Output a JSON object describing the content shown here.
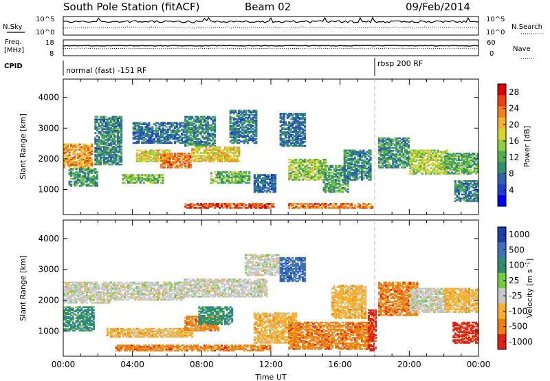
{
  "header": {
    "station": "South Pole Station (fitACF)",
    "beam": "Beam 02",
    "date": "09/Feb/2014"
  },
  "top_panels": {
    "nsky_label": "N.Sky",
    "nsky_ticks": [
      "10^5",
      "10^0"
    ],
    "nsearch_label": "N.Search",
    "nsearch_ticks": [
      "10^5",
      "10^0"
    ],
    "freq_label_1": "Freq.",
    "freq_label_2": "[MHz]",
    "freq_ticks": [
      "18",
      "8"
    ],
    "nave_label": "Nave",
    "nave_ticks": [
      "60",
      "0"
    ],
    "cpid_label": "CPID",
    "cpid_modes": [
      {
        "label": "normal (fast) -151 RF",
        "start_hour": 0,
        "end_hour": 18.0
      },
      {
        "label": "rbsp 200 RF",
        "start_hour": 18.0,
        "end_hour": 24.0
      }
    ]
  },
  "chart_data": [
    {
      "type": "heatmap",
      "name": "power",
      "ylabel": "Slant Range [km]",
      "xlabel": "",
      "x_ticks": [
        "00:00",
        "04:00",
        "08:00",
        "12:00",
        "16:00",
        "20:00",
        "00:00"
      ],
      "x_tick_hours": [
        0,
        4,
        8,
        12,
        16,
        20,
        24
      ],
      "ylim": [
        180,
        4600
      ],
      "y_ticks": [
        1000,
        2000,
        3000,
        4000
      ],
      "colorbar": {
        "label": "Power [dB]",
        "ticks": [
          "28",
          "24",
          "20",
          "16",
          "12",
          "8",
          "4"
        ],
        "tick_values": [
          28,
          24,
          20,
          16,
          12,
          8,
          4
        ],
        "range": [
          0,
          30
        ],
        "colors": [
          "#0000ff",
          "#1f3fd0",
          "#3060b0",
          "#2f8f6f",
          "#4faf4f",
          "#8fcf3f",
          "#d7d727",
          "#f7b02f",
          "#f77f1f",
          "#f04010",
          "#e00000"
        ]
      },
      "regions": [
        {
          "h0": 0.0,
          "h1": 1.7,
          "r0": 1700,
          "r1": 2500,
          "v": 22
        },
        {
          "h0": 0.3,
          "h1": 2.0,
          "r0": 1100,
          "r1": 1700,
          "v": 10
        },
        {
          "h0": 1.8,
          "h1": 3.4,
          "r0": 1800,
          "r1": 3400,
          "v": 9
        },
        {
          "h0": 3.4,
          "h1": 5.8,
          "r0": 1200,
          "r1": 1500,
          "v": 14
        },
        {
          "h0": 4.2,
          "h1": 6.2,
          "r0": 1900,
          "r1": 2300,
          "v": 18
        },
        {
          "h0": 4.0,
          "h1": 7.2,
          "r0": 2500,
          "r1": 3200,
          "v": 7
        },
        {
          "h0": 5.6,
          "h1": 7.4,
          "r0": 1700,
          "r1": 2200,
          "v": 24
        },
        {
          "h0": 7.0,
          "h1": 8.8,
          "r0": 2400,
          "r1": 3400,
          "v": 9
        },
        {
          "h0": 7.4,
          "h1": 10.2,
          "r0": 1900,
          "r1": 2400,
          "v": 19
        },
        {
          "h0": 8.5,
          "h1": 10.8,
          "r0": 1200,
          "r1": 1600,
          "v": 13
        },
        {
          "h0": 9.6,
          "h1": 11.2,
          "r0": 2500,
          "r1": 3600,
          "v": 8
        },
        {
          "h0": 7.0,
          "h1": 12.2,
          "r0": 380,
          "r1": 560,
          "v": 27
        },
        {
          "h0": 11.0,
          "h1": 12.3,
          "r0": 900,
          "r1": 1500,
          "v": 6
        },
        {
          "h0": 12.5,
          "h1": 14.0,
          "r0": 2400,
          "r1": 3500,
          "v": 7
        },
        {
          "h0": 13.0,
          "h1": 15.2,
          "r0": 1300,
          "r1": 2000,
          "v": 15
        },
        {
          "h0": 13.0,
          "h1": 17.9,
          "r0": 380,
          "r1": 560,
          "v": 24
        },
        {
          "h0": 15.0,
          "h1": 16.5,
          "r0": 900,
          "r1": 1800,
          "v": 11
        },
        {
          "h0": 16.2,
          "h1": 17.8,
          "r0": 1300,
          "r1": 2300,
          "v": 9
        },
        {
          "h0": 18.2,
          "h1": 20.0,
          "r0": 1700,
          "r1": 2700,
          "v": 10
        },
        {
          "h0": 20.0,
          "h1": 22.2,
          "r0": 1500,
          "r1": 2300,
          "v": 16
        },
        {
          "h0": 22.0,
          "h1": 24.0,
          "r0": 1500,
          "r1": 2200,
          "v": 12
        },
        {
          "h0": 22.6,
          "h1": 24.0,
          "r0": 600,
          "r1": 1300,
          "v": 8
        }
      ]
    },
    {
      "type": "heatmap",
      "name": "velocity",
      "ylabel": "Slant Range [km]",
      "xlabel": "Time UT",
      "x_ticks": [
        "00:00",
        "04:00",
        "08:00",
        "12:00",
        "16:00",
        "20:00",
        "00:00"
      ],
      "x_tick_hours": [
        0,
        4,
        8,
        12,
        16,
        20,
        24
      ],
      "ylim": [
        180,
        4600
      ],
      "y_ticks": [
        1000,
        2000,
        3000,
        4000
      ],
      "colorbar": {
        "label": "Velocity [m s^-1]",
        "ticks": [
          "1000",
          "500",
          "100",
          "25",
          "-25",
          "-100",
          "-500",
          "-1000"
        ],
        "colors": [
          "#1c3fa8",
          "#3f6fbf",
          "#2f8f6f",
          "#6fcf3f",
          "#c8c8c8",
          "#f7b02f",
          "#f07f10",
          "#e02010"
        ]
      },
      "regions": [
        {
          "h0": 0.0,
          "h1": 2.8,
          "r0": 1900,
          "r1": 2600,
          "c": 4
        },
        {
          "h0": 2.8,
          "h1": 7.0,
          "r0": 2000,
          "r1": 2600,
          "c": 4
        },
        {
          "h0": 7.0,
          "h1": 11.8,
          "r0": 2100,
          "r1": 2700,
          "c": 4
        },
        {
          "h0": 10.5,
          "h1": 12.5,
          "r0": 2800,
          "r1": 3500,
          "c": 4
        },
        {
          "h0": 0.0,
          "h1": 1.8,
          "r0": 1000,
          "r1": 1800,
          "c": 2
        },
        {
          "h0": 2.5,
          "h1": 7.5,
          "r0": 800,
          "r1": 1100,
          "c": 5
        },
        {
          "h0": 7.0,
          "h1": 9.0,
          "r0": 1000,
          "r1": 1500,
          "c": 6
        },
        {
          "h0": 7.8,
          "h1": 9.8,
          "r0": 1200,
          "r1": 1800,
          "c": 2
        },
        {
          "h0": 3.0,
          "h1": 12.0,
          "r0": 350,
          "r1": 560,
          "c": 6
        },
        {
          "h0": 11.0,
          "h1": 13.5,
          "r0": 600,
          "r1": 1600,
          "c": 5
        },
        {
          "h0": 12.5,
          "h1": 14.0,
          "r0": 2600,
          "r1": 3400,
          "c": 1
        },
        {
          "h0": 13.0,
          "h1": 17.9,
          "r0": 400,
          "r1": 1300,
          "c": 6
        },
        {
          "h0": 15.5,
          "h1": 17.5,
          "r0": 1400,
          "r1": 2500,
          "c": 5
        },
        {
          "h0": 17.6,
          "h1": 18.1,
          "r0": 350,
          "r1": 1700,
          "c": 7
        },
        {
          "h0": 18.2,
          "h1": 20.5,
          "r0": 1500,
          "r1": 2600,
          "c": 6
        },
        {
          "h0": 20.0,
          "h1": 22.3,
          "r0": 1600,
          "r1": 2400,
          "c": 4
        },
        {
          "h0": 22.0,
          "h1": 24.0,
          "r0": 1600,
          "r1": 2400,
          "c": 5
        },
        {
          "h0": 22.5,
          "h1": 24.0,
          "r0": 600,
          "r1": 1300,
          "c": 7
        }
      ]
    }
  ]
}
